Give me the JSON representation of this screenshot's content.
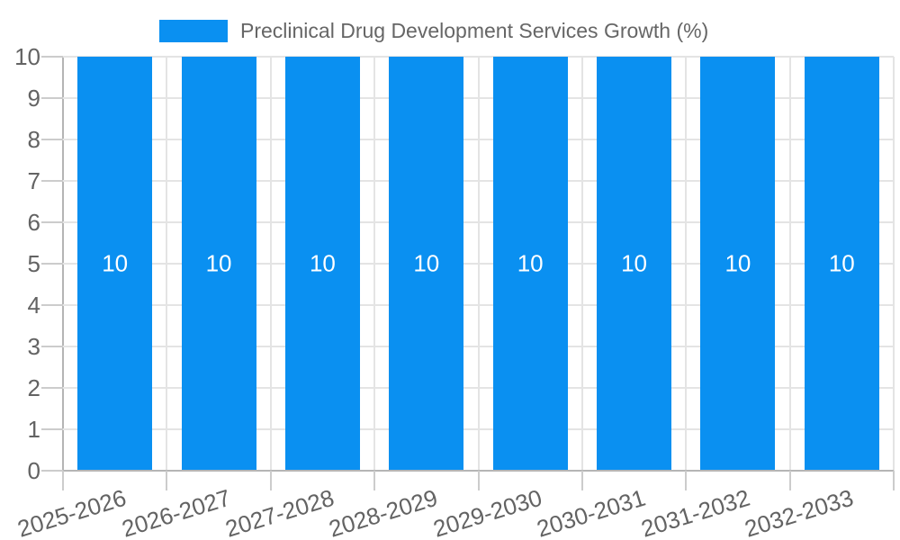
{
  "chart_data": {
    "type": "bar",
    "title": "Preclinical Drug Development Services Growth (%)",
    "categories": [
      "2025-2026",
      "2026-2027",
      "2027-2028",
      "2028-2029",
      "2029-2030",
      "2030-2031",
      "2031-2032",
      "2032-2033"
    ],
    "values": [
      10,
      10,
      10,
      10,
      10,
      10,
      10,
      10
    ],
    "bar_labels": [
      "10",
      "10",
      "10",
      "10",
      "10",
      "10",
      "10",
      "10"
    ],
    "y_ticks": [
      0,
      1,
      2,
      3,
      4,
      5,
      6,
      7,
      8,
      9,
      10
    ],
    "ylim": [
      0,
      10
    ],
    "xlabel": "",
    "ylabel": "",
    "legend_position": "top",
    "grid": true,
    "x_label_rotation_deg": -17,
    "colors": {
      "bar": "#0a90f1",
      "grid": "#e4e4e4",
      "axis": "#b5b5b5",
      "tick": "#cccccc",
      "axis_text": "#636363",
      "legend_text": "#666666",
      "value_label": "#ffffff",
      "background": "#ffffff"
    }
  }
}
